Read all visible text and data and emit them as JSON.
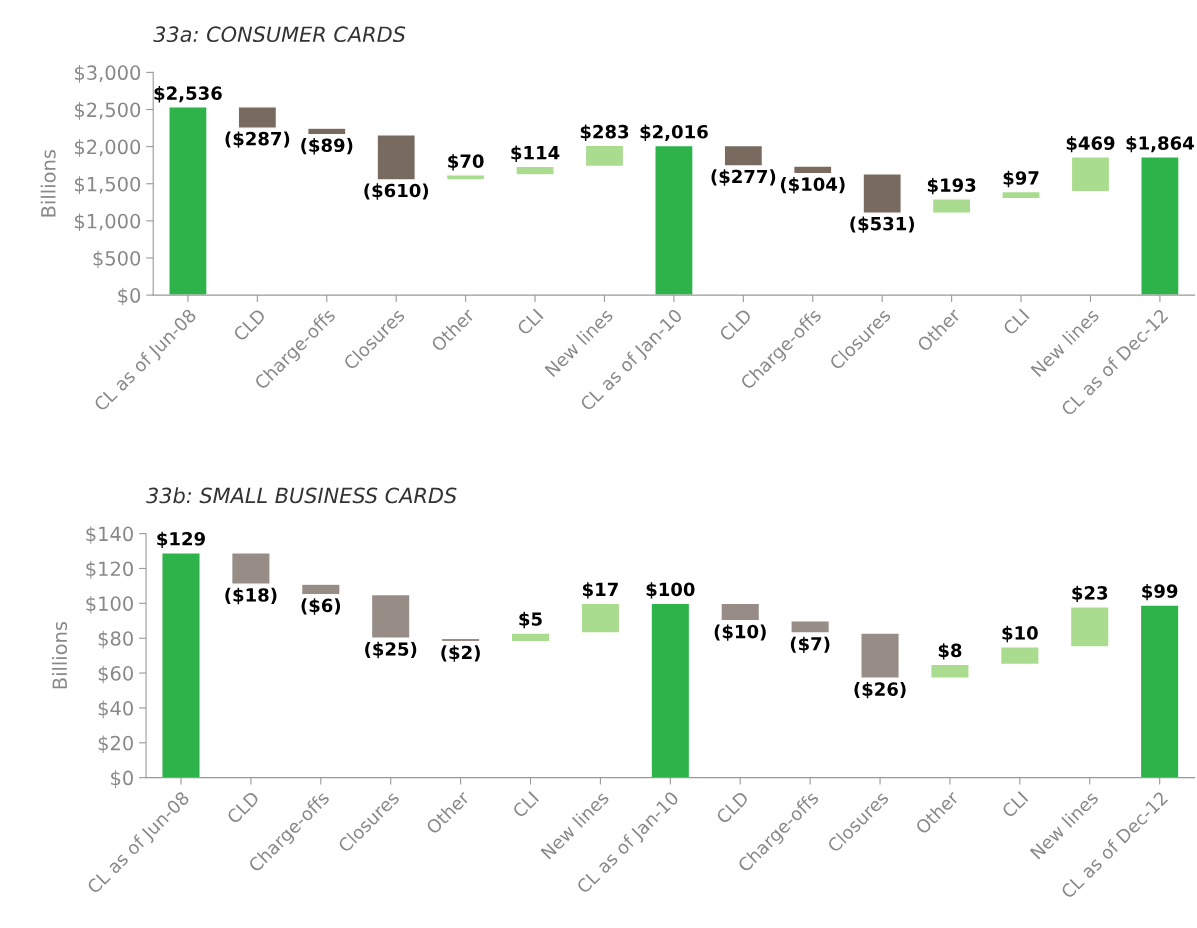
{
  "chart_data": [
    {
      "type": "bar",
      "title": "33a: CONSUMER CARDS",
      "ylabel": "Billions",
      "categories": [
        "CL as of Jun-08",
        "CLD",
        "Charge-offs",
        "Closures",
        "Other",
        "CLI",
        "New lines",
        "CL as of Jan-10",
        "CLD",
        "Charge-offs",
        "Closures",
        "Other",
        "CLI",
        "New lines",
        "CL as of Dec-12"
      ],
      "values": [
        2536,
        -287,
        -89,
        -610,
        70,
        114,
        283,
        2016,
        -277,
        -104,
        -531,
        193,
        97,
        469,
        1864
      ],
      "base": [
        0,
        2536,
        2249,
        2160,
        1550,
        1620,
        1734,
        0,
        2016,
        1739,
        1635,
        1104,
        1297,
        1394,
        0
      ],
      "colors": [
        "#2db34a",
        "#786a5f",
        "#786a5f",
        "#786a5f",
        "#a9dc8f",
        "#a9dc8f",
        "#a9dc8f",
        "#2db34a",
        "#786a5f",
        "#786a5f",
        "#786a5f",
        "#a9dc8f",
        "#a9dc8f",
        "#a9dc8f",
        "#2db34a"
      ],
      "value_labels": [
        "$2,536",
        "($287)",
        "($89)",
        "($610)",
        "$70",
        "$114",
        "$283",
        "$2,016",
        "($277)",
        "($104)",
        "($531)",
        "$193",
        "$97",
        "$469",
        "$1,864"
      ],
      "ylim": [
        0,
        3000
      ],
      "yticks": [
        {
          "value": 0,
          "label": "$0"
        },
        {
          "value": 500,
          "label": "$500"
        },
        {
          "value": 1000,
          "label": "$1,000"
        },
        {
          "value": 1500,
          "label": "$1,500"
        },
        {
          "value": 2000,
          "label": "$2,000"
        },
        {
          "value": 2500,
          "label": "$2,500"
        },
        {
          "value": 3000,
          "label": "$3,000"
        }
      ],
      "grid": false,
      "legend": false
    },
    {
      "type": "bar",
      "title": "33b: SMALL BUSINESS CARDS",
      "ylabel": "Billions",
      "categories": [
        "CL as of Jun-08",
        "CLD",
        "Charge-offs",
        "Closures",
        "Other",
        "CLI",
        "New lines",
        "CL as of Jan-10",
        "CLD",
        "Charge-offs",
        "Closures",
        "Other",
        "CLI",
        "New lines",
        "CL as of Dec-12"
      ],
      "values": [
        129,
        -18,
        -6,
        -25,
        -2,
        5,
        17,
        100,
        -10,
        -7,
        -26,
        8,
        10,
        23,
        99
      ],
      "base": [
        0,
        129,
        111,
        105,
        80,
        78,
        83,
        0,
        100,
        90,
        83,
        57,
        65,
        75,
        0
      ],
      "colors": [
        "#2db34a",
        "#978c86",
        "#978c86",
        "#978c86",
        "#978c86",
        "#a9dc8f",
        "#a9dc8f",
        "#2db34a",
        "#978c86",
        "#978c86",
        "#978c86",
        "#a9dc8f",
        "#a9dc8f",
        "#a9dc8f",
        "#2db34a"
      ],
      "value_labels": [
        "$129",
        "($18)",
        "($6)",
        "($25)",
        "($2)",
        "$5",
        "$17",
        "$100",
        "($10)",
        "($7)",
        "($26)",
        "$8",
        "$10",
        "$23",
        "$99"
      ],
      "ylim": [
        0,
        140
      ],
      "yticks": [
        {
          "value": 0,
          "label": "$0"
        },
        {
          "value": 20,
          "label": "$20"
        },
        {
          "value": 40,
          "label": "$40"
        },
        {
          "value": 60,
          "label": "$60"
        },
        {
          "value": 80,
          "label": "$80"
        },
        {
          "value": 100,
          "label": "$100"
        },
        {
          "value": 120,
          "label": "$120"
        },
        {
          "value": 140,
          "label": "$140"
        }
      ],
      "grid": false,
      "legend": false
    }
  ]
}
